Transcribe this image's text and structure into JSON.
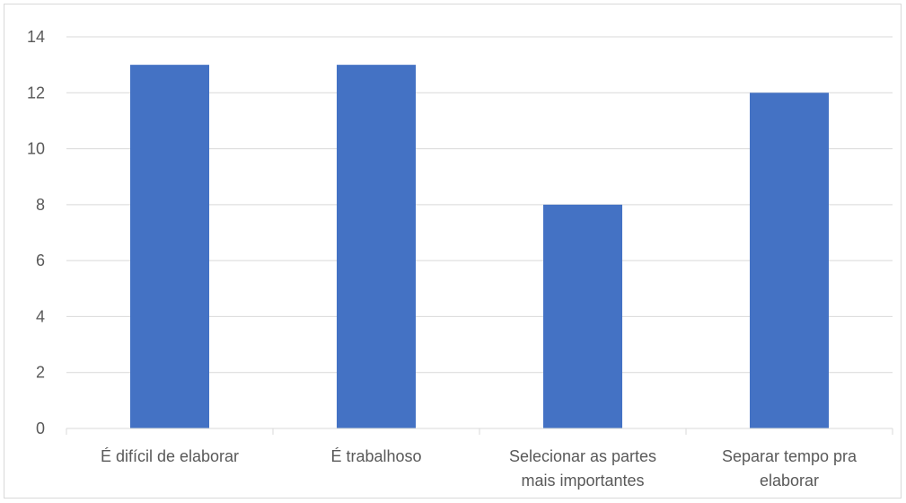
{
  "chart_data": {
    "type": "bar",
    "title": "",
    "xlabel": "",
    "ylabel": "",
    "categories": [
      [
        "É difícil de elaborar"
      ],
      [
        "É trabalhoso"
      ],
      [
        "Selecionar as partes",
        "mais importantes"
      ],
      [
        "Separar tempo pra",
        "elaborar"
      ]
    ],
    "values": [
      13,
      13,
      8,
      12
    ],
    "ylim": [
      0,
      14
    ],
    "yticks": [
      0,
      2,
      4,
      6,
      8,
      10,
      12,
      14
    ],
    "grid": true,
    "legend": "none",
    "bar_color": "#4472C4",
    "grid_color": "#d9d9d9",
    "text_color": "#595959"
  }
}
